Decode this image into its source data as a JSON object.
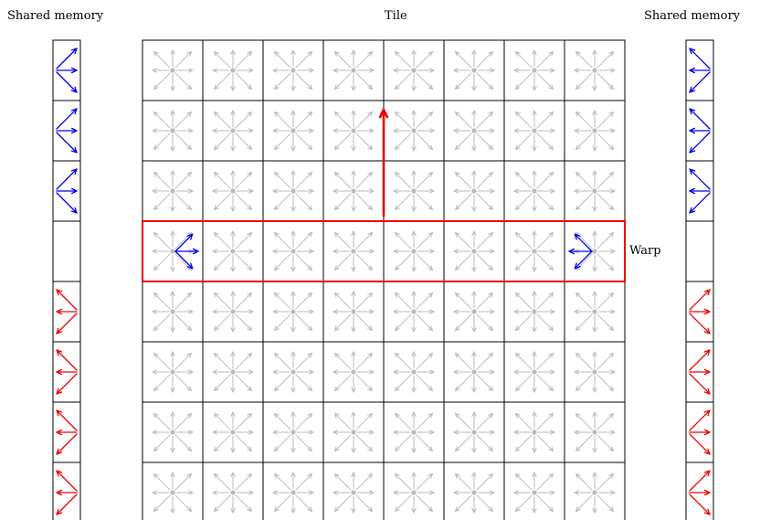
{
  "labels": {
    "left_title": "Shared memory",
    "center_title": "Tile",
    "right_title": "Shared memory",
    "warp": "Warp"
  },
  "grid": {
    "rows": 8,
    "cols": 8,
    "warp_row": 3
  },
  "shared_memory": {
    "left_cells": [
      "blue",
      "blue",
      "blue",
      "empty",
      "red",
      "red",
      "red",
      "red"
    ],
    "right_cells": [
      "blue",
      "blue",
      "blue",
      "empty",
      "red",
      "red",
      "red",
      "red"
    ]
  },
  "colors": {
    "grid_arrow": "#bbbbbb",
    "highlight_blue": "#0000ee",
    "highlight_red": "#ee0000",
    "cell_border": "#000000"
  },
  "icons": [
    "eight-way-arrow-icon",
    "right-fan-arrow-icon",
    "left-fan-arrow-icon",
    "up-arrow-icon"
  ]
}
